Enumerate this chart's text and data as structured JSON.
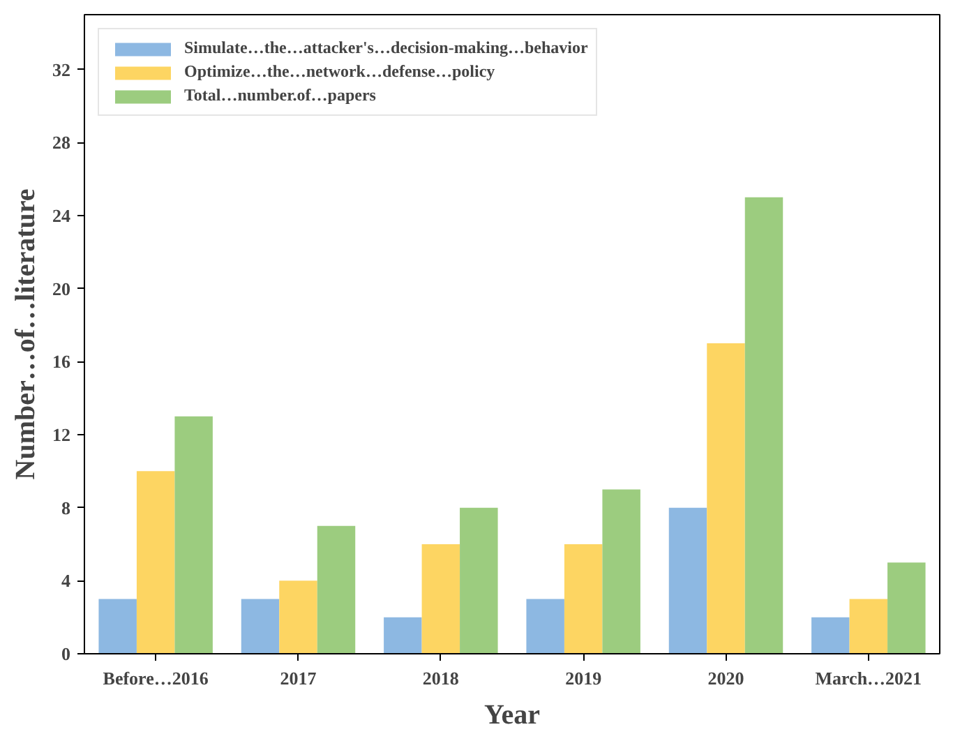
{
  "chart_data": {
    "type": "bar",
    "xlabel": "Year",
    "ylabel": "Number…of…literature",
    "categories": [
      "Before…2016",
      "2017",
      "2018",
      "2019",
      "2020",
      "March…2021"
    ],
    "series": [
      {
        "name": "Simulate…the…attacker's…decision-making…behavior",
        "color": "#8db8e2",
        "values": [
          3,
          3,
          2,
          3,
          8,
          2
        ]
      },
      {
        "name": "Optimize…the…network…defense…policy",
        "color": "#fdd562",
        "values": [
          10,
          4,
          6,
          6,
          17,
          3
        ]
      },
      {
        "name": "Total…number.of…papers",
        "color": "#9ccc7f",
        "values": [
          13,
          7,
          8,
          9,
          25,
          5
        ]
      }
    ],
    "ylim": [
      0,
      35
    ],
    "yticks": [
      0,
      4,
      8,
      12,
      16,
      20,
      24,
      28,
      32
    ],
    "grid": false,
    "legend": "top left"
  }
}
